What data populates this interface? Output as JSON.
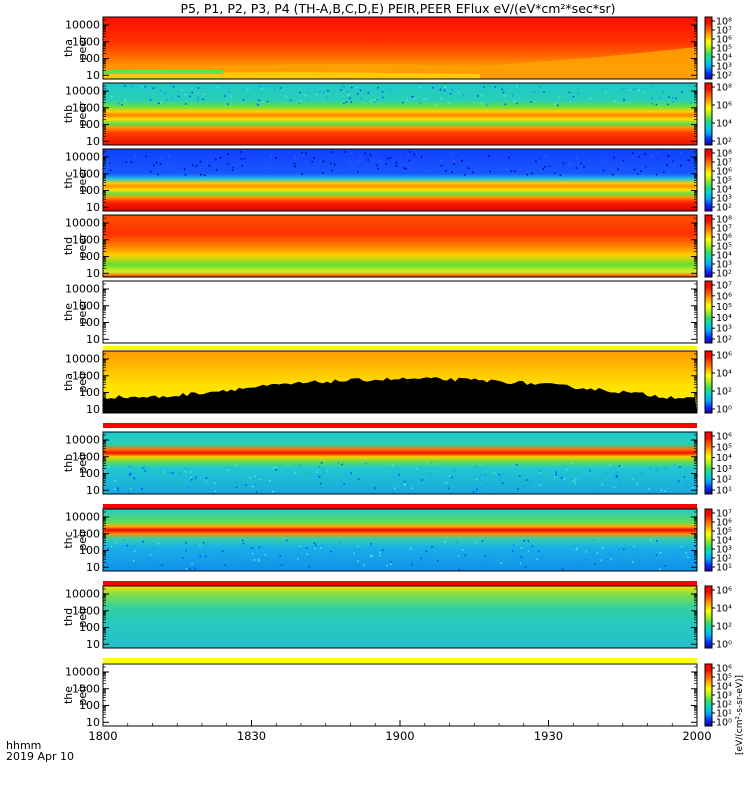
{
  "title": "P5, P1, P2, P3, P4 (TH-A,B,C,D,E) PEIR,PEER EFlux eV/(eV*cm²*sec*sr)",
  "footer": {
    "time_label": "hhmm",
    "date_label": "2019 Apr 10"
  },
  "colorbar_units_label": "[eV/(cm²-s-sr-eV)]",
  "chart_data": {
    "type": "heatmap",
    "x_ticks": [
      "1800",
      "1830",
      "1900",
      "1930",
      "2000"
    ],
    "y_ticks": [
      "10",
      "100",
      "1000",
      "10000"
    ],
    "y_scale": "log",
    "ylim": [
      6,
      30000
    ],
    "panels": [
      {
        "label1": "tha",
        "label2": "peer",
        "pattern": "tha_peer",
        "cbar_ticks": [
          "10⁸",
          "10⁷",
          "10⁶",
          "10⁵",
          "10⁴",
          "10³",
          "10²"
        ]
      },
      {
        "label1": "thb",
        "label2": "peer",
        "pattern": "thb_peer",
        "cbar_ticks": [
          "10⁸",
          "10⁶",
          "10⁴",
          "10²"
        ]
      },
      {
        "label1": "thc",
        "label2": "peer",
        "pattern": "thc_peer",
        "cbar_ticks": [
          "10⁸",
          "10⁷",
          "10⁶",
          "10⁵",
          "10⁴",
          "10³",
          "10²"
        ]
      },
      {
        "label1": "thd",
        "label2": "peer",
        "pattern": "thd_peer",
        "cbar_ticks": [
          "10⁸",
          "10⁷",
          "10⁶",
          "10⁵",
          "10⁴",
          "10³",
          "10²"
        ]
      },
      {
        "label1": "the",
        "label2": "peer",
        "pattern": "the_peer",
        "cbar_ticks": [
          "10⁷",
          "10⁶",
          "10⁵",
          "10⁴",
          "10³",
          "10²"
        ]
      },
      {
        "label1": "tha",
        "label2": "peir",
        "pattern": "tha_peir",
        "cbar_ticks": [
          "10⁶",
          "10⁴",
          "10²",
          "10⁰"
        ]
      },
      {
        "label1": "thb",
        "label2": "peir",
        "pattern": "thb_peir",
        "cbar_ticks": [
          "10⁶",
          "10⁵",
          "10⁴",
          "10³",
          "10²",
          "10¹"
        ]
      },
      {
        "label1": "thc",
        "label2": "peir",
        "pattern": "thc_peir",
        "cbar_ticks": [
          "10⁷",
          "10⁶",
          "10⁵",
          "10⁴",
          "10³",
          "10²",
          "10¹"
        ]
      },
      {
        "label1": "thd",
        "label2": "peir",
        "pattern": "thd_peir",
        "cbar_ticks": [
          "10⁶",
          "10⁴",
          "10²",
          "10⁰"
        ]
      },
      {
        "label1": "the",
        "label2": "peir",
        "pattern": "the_peir",
        "cbar_ticks": [
          "10⁶",
          "10⁵",
          "10⁴",
          "10³",
          "10²",
          "10¹",
          "10⁰"
        ]
      }
    ]
  }
}
